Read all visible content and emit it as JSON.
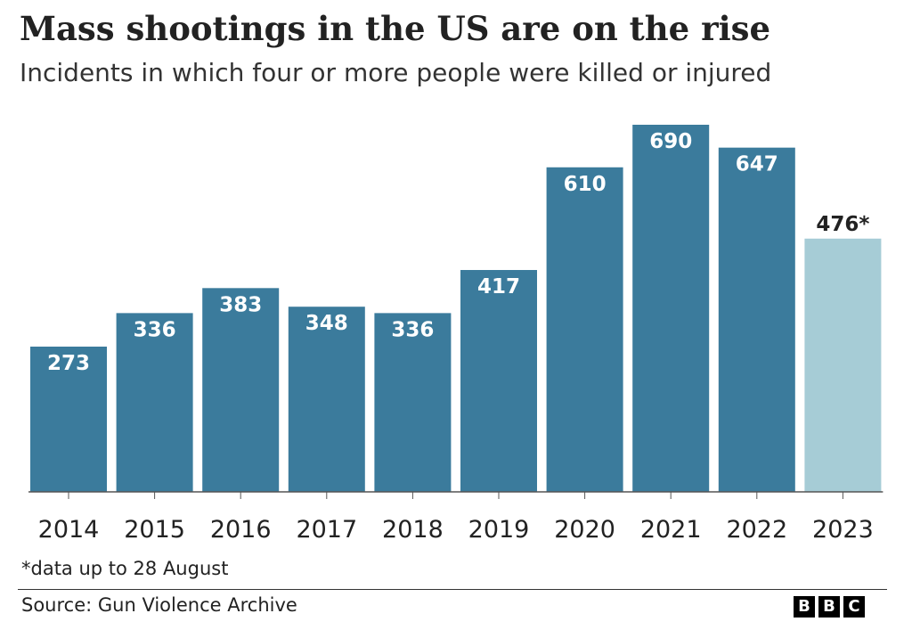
{
  "header": {
    "title": "Mass shootings in the US are on the rise",
    "subtitle": "Incidents in which four or more people were killed or injured"
  },
  "chart_data": {
    "type": "bar",
    "title": "Mass shootings in the US are on the rise",
    "subtitle": "Incidents in which four or more people were killed or injured",
    "categories": [
      "2014",
      "2015",
      "2016",
      "2017",
      "2018",
      "2019",
      "2020",
      "2021",
      "2022",
      "2023"
    ],
    "values": [
      273,
      336,
      383,
      348,
      336,
      417,
      610,
      690,
      647,
      476
    ],
    "data_labels": [
      "273",
      "336",
      "383",
      "348",
      "336",
      "417",
      "610",
      "690",
      "647",
      "476*"
    ],
    "xlabel": "",
    "ylabel": "",
    "ylim": [
      0,
      700
    ],
    "grid": false,
    "legend": "none",
    "colors": {
      "bar": "#3b7b9c",
      "highlight_bar": "#a6ccd6",
      "label_on_bar": "#ffffff",
      "label_above_bar": "#222222"
    },
    "highlight_index": 9
  },
  "footer": {
    "note": "*data up to 28 August",
    "source": "Source: Gun Violence Archive",
    "logo_letters": [
      "B",
      "B",
      "C"
    ]
  }
}
